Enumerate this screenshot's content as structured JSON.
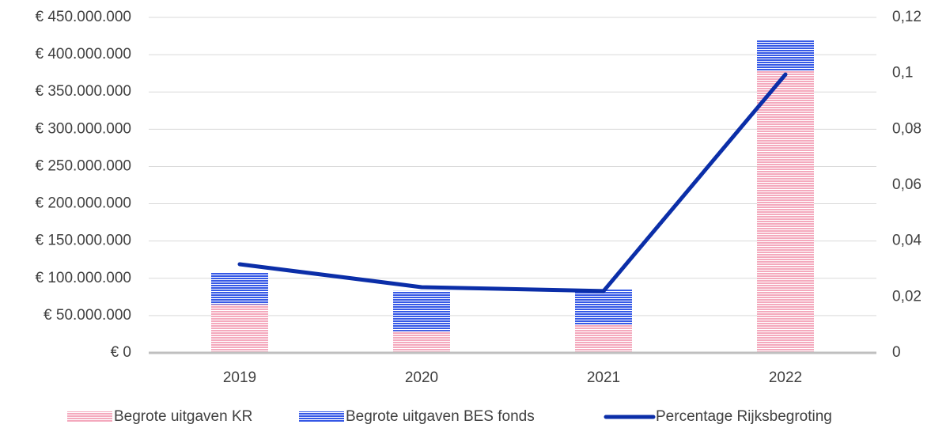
{
  "chart_data": {
    "type": "bar",
    "categories": [
      "2019",
      "2020",
      "2021",
      "2022"
    ],
    "series": [
      {
        "name": "Begrote uitgaven KR",
        "color": "#f4a9bd",
        "type": "bar",
        "values": [
          65000000,
          29000000,
          38000000,
          378000000
        ]
      },
      {
        "name": "Begrote uitgaven BES fonds",
        "color": "#3558e6",
        "type": "bar",
        "values": [
          43000000,
          54000000,
          47000000,
          41000000
        ]
      },
      {
        "name": "Percentage Rijksbegroting",
        "color": "#0b2ea8",
        "type": "line",
        "axis": "y2",
        "values": [
          0.0317,
          0.0235,
          0.0221,
          0.0996
        ]
      }
    ],
    "ylim": [
      0,
      450000000
    ],
    "yticks": [
      {
        "value": 0,
        "label": "€ 0"
      },
      {
        "value": 50000000,
        "label": "€ 50.000.000"
      },
      {
        "value": 100000000,
        "label": "€ 100.000.000"
      },
      {
        "value": 150000000,
        "label": "€ 150.000.000"
      },
      {
        "value": 200000000,
        "label": "€ 200.000.000"
      },
      {
        "value": 250000000,
        "label": "€ 250.000.000"
      },
      {
        "value": 300000000,
        "label": "€ 300.000.000"
      },
      {
        "value": 350000000,
        "label": "€ 350.000.000"
      },
      {
        "value": 400000000,
        "label": "€ 400.000.000"
      },
      {
        "value": 450000000,
        "label": "€ 450.000.000"
      }
    ],
    "y2lim": [
      0,
      0.12
    ],
    "y2ticks": [
      0,
      {
        "value": 0.02,
        "label": "0,02"
      },
      {
        "value": 0.04,
        "label": "0,04"
      },
      {
        "value": 0.06,
        "label": "0,06"
      },
      {
        "value": 0.08,
        "label": "0,08"
      },
      {
        "value": 0.1,
        "label": "0,1"
      },
      {
        "value": 0.12,
        "label": "0,12"
      }
    ],
    "grid": true,
    "legend": "bottom"
  }
}
